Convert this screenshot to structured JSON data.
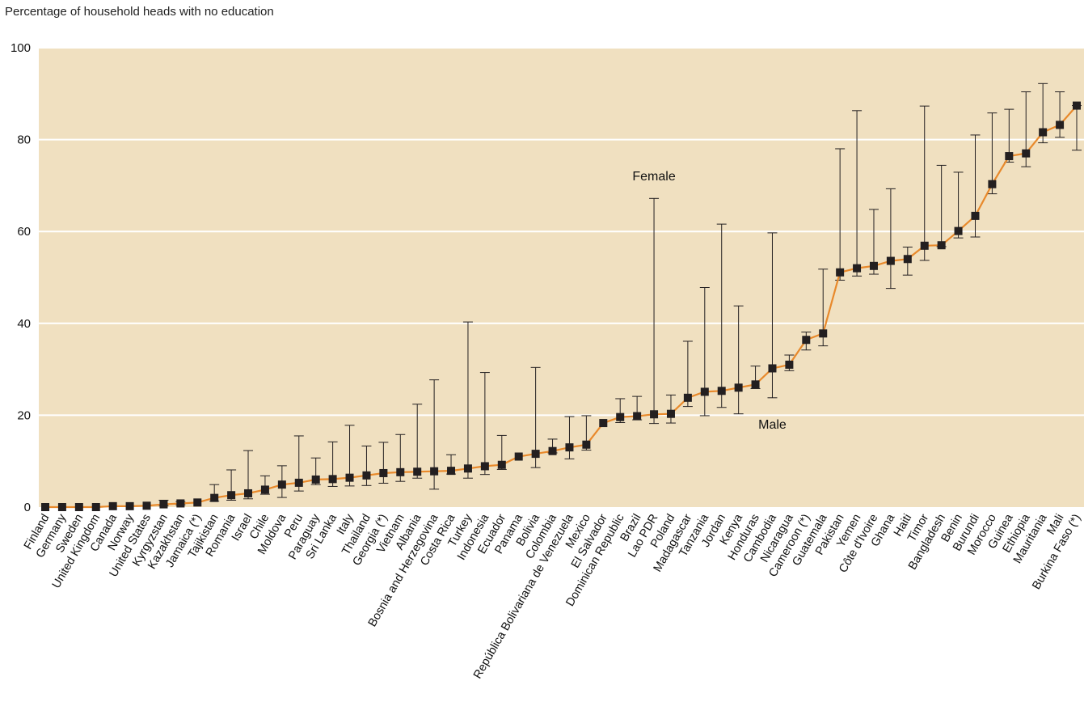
{
  "chart_data": {
    "type": "line",
    "title": "",
    "subtitle": "Percentage of household heads with no education",
    "xlabel": "",
    "ylabel": "",
    "ylim": [
      0,
      100
    ],
    "yticks": [
      0,
      20,
      40,
      60,
      80,
      100
    ],
    "grid": true,
    "legend": "none",
    "annotations": [
      {
        "text": "Female",
        "x": "Lao PDR",
        "y": 72
      },
      {
        "text": "Male",
        "x": "Cambodia",
        "y": 18
      }
    ],
    "colors": {
      "background": "#f0e0c0",
      "line": "#e8892b",
      "marker": "#231f20",
      "grid": "#ffffff",
      "whisker": "#231f20"
    },
    "categories": [
      "Finland",
      "Germany",
      "Sweden",
      "United Kingdom",
      "Canada",
      "Norway",
      "United States",
      "Kyrgyzstan",
      "Kazakhstan",
      "Jamaica (*)",
      "Tajikistan",
      "Romania",
      "Israel",
      "Chile",
      "Moldova",
      "Peru",
      "Paraguay",
      "Sri Lanka",
      "Italy",
      "Thailand",
      "Georgia (*)",
      "Vietnam",
      "Albania",
      "Bosnia and Herzegovina",
      "Costa Rica",
      "Turkey",
      "Indonesia",
      "Ecuador",
      "Panama",
      "Bolivia",
      "Colombia",
      "República Bolivariana de Venezuela",
      "Mexico",
      "El Salvador",
      "Dominican Republic",
      "Brazil",
      "Lao PDR",
      "Poland",
      "Madagascar",
      "Tanzania",
      "Jordan",
      "Kenya",
      "Honduras",
      "Cambodia",
      "Nicaragua",
      "Cameroon (*)",
      "Guatemala",
      "Pakistan",
      "Yemen",
      "Côte d'Ivoire",
      "Ghana",
      "Haiti",
      "Timor",
      "Bangladesh",
      "Benin",
      "Burundi",
      "Morocco",
      "Guinea",
      "Ethiopia",
      "Mauritania",
      "Mali",
      "Burkina Faso (*)"
    ],
    "series": [
      {
        "name": "",
        "values": [
          0,
          0,
          0,
          0,
          0.2,
          0.2,
          0.3,
          0.6,
          0.8,
          1,
          2,
          2.6,
          3,
          3.8,
          4.9,
          5.3,
          6,
          6.1,
          6.4,
          6.9,
          7.4,
          7.6,
          7.7,
          7.8,
          7.9,
          8.4,
          8.9,
          9.2,
          11,
          11.6,
          12.2,
          13,
          13.6,
          18.3,
          19.6,
          19.8,
          20.2,
          20.3,
          23.8,
          25.1,
          25.3,
          26,
          26.7,
          30.2,
          31,
          36.4,
          37.8,
          51.1,
          52,
          52.5,
          53.6,
          54,
          56.9,
          57,
          60.1,
          63.4,
          70.3,
          76.4,
          77,
          81.6,
          83.2,
          87.4
        ]
      },
      {
        "name": "",
        "values": [
          0,
          0,
          0,
          0,
          0.2,
          0.3,
          0.5,
          1.5,
          1.2,
          1.2,
          4.9,
          8.1,
          12.3,
          6.8,
          9,
          15.5,
          10.7,
          14.2,
          17.8,
          13.3,
          14.1,
          15.8,
          22.4,
          27.7,
          11.4,
          40.3,
          29.3,
          15.6,
          11,
          30.4,
          14.8,
          19.7,
          19.9,
          18.3,
          23.6,
          24.1,
          67.2,
          24.4,
          36.1,
          47.8,
          61.6,
          43.8,
          30.7,
          59.7,
          33.1,
          38.1,
          51.8,
          78,
          86.3,
          64.8,
          69.3,
          56.6,
          87.3,
          74.4,
          72.9,
          81,
          85.8,
          86.6,
          90.4,
          92.2,
          90.4,
          87.4
        ]
      },
      {
        "name": "",
        "values": [
          0,
          0,
          0,
          0,
          0.2,
          0.2,
          0.3,
          0.3,
          0.5,
          0.8,
          1.3,
          1.5,
          1.8,
          2.8,
          2.1,
          3.5,
          4.9,
          4.5,
          4.6,
          4.7,
          5.2,
          5.6,
          6.3,
          3.9,
          7.2,
          6.3,
          7.1,
          8.2,
          10.9,
          8.6,
          11.8,
          10.5,
          12.4,
          18.2,
          18.4,
          19,
          18.2,
          18.3,
          21.9,
          19.9,
          21.7,
          20.3,
          25.8,
          23.8,
          29.7,
          34.2,
          35.1,
          49.4,
          50.3,
          50.7,
          47.6,
          50.5,
          53.7,
          56.7,
          58.6,
          58.8,
          68.2,
          75.1,
          74.1,
          79.3,
          80.5,
          77.7
        ]
      }
    ]
  }
}
